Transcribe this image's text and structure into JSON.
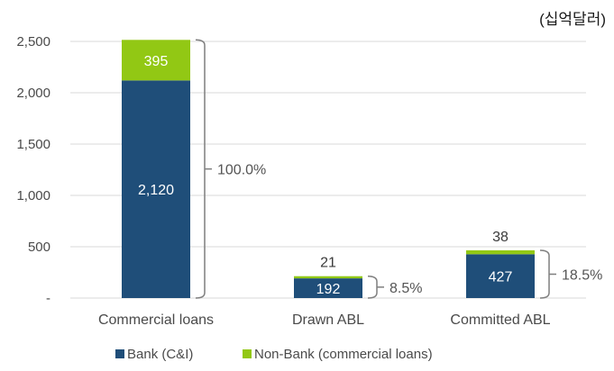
{
  "chart_data": {
    "type": "bar",
    "stacked": true,
    "unit_label": "(십억달러)",
    "categories": [
      "Commercial loans",
      "Drawn ABL",
      "Committed ABL"
    ],
    "series": [
      {
        "name": "Bank (C&I)",
        "values": [
          2120,
          192,
          427
        ],
        "labels": [
          "2,120",
          "192",
          "427"
        ],
        "color": "#1f4e79"
      },
      {
        "name": "Non-Bank (commercial loans)",
        "values": [
          395,
          21,
          38
        ],
        "labels": [
          "395",
          "21",
          "38"
        ],
        "color": "#92c814"
      }
    ],
    "brackets": [
      "100.0%",
      "8.5%",
      "18.5%"
    ],
    "y_ticks": [
      "-",
      "500",
      "1,000",
      "1,500",
      "2,000",
      "2,500"
    ],
    "y_tick_values": [
      0,
      500,
      1000,
      1500,
      2000,
      2500
    ],
    "ylim": [
      0,
      2500
    ],
    "grid": true,
    "legend_position": "bottom",
    "gridline_color": "#d9d9d9",
    "bracket_color": "#7f7f7f"
  }
}
